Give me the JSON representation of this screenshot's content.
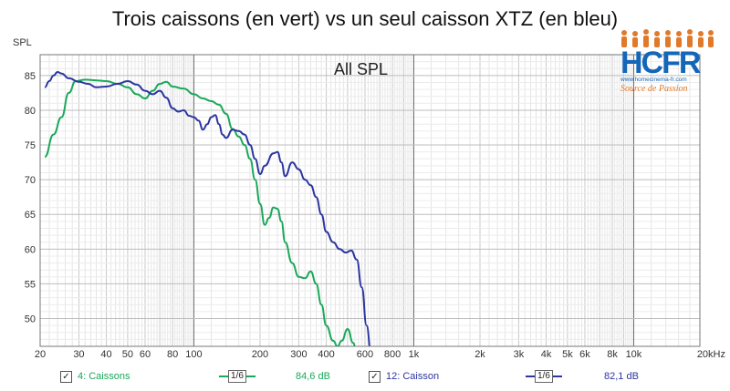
{
  "title": "Trois caissons (en vert) vs un seul caisson XTZ (en bleu)",
  "overlay_text": "All SPL",
  "logo": {
    "text": "HCFR",
    "url": "www.homecinema-fr.com",
    "tagline": "Source de Passion",
    "icon": "people-silhouettes-icon"
  },
  "colors": {
    "green": "#1aa85a",
    "blue": "#2c36a0",
    "logo_blue": "#1466b8",
    "logo_orange": "#e07a2b"
  },
  "chart_data": {
    "type": "line",
    "title": "",
    "ylabel": "SPL",
    "xscale": "log",
    "xlim": [
      20,
      20000
    ],
    "ylim": [
      46,
      88
    ],
    "grid": true,
    "yticks": [
      50,
      55,
      60,
      65,
      70,
      75,
      80,
      85
    ],
    "xticks": [
      {
        "v": 20,
        "label": "20"
      },
      {
        "v": 30,
        "label": "30"
      },
      {
        "v": 40,
        "label": "40"
      },
      {
        "v": 50,
        "label": "50"
      },
      {
        "v": 60,
        "label": "60"
      },
      {
        "v": 80,
        "label": "80"
      },
      {
        "v": 100,
        "label": "100"
      },
      {
        "v": 200,
        "label": "200"
      },
      {
        "v": 300,
        "label": "300"
      },
      {
        "v": 400,
        "label": "400"
      },
      {
        "v": 600,
        "label": "600"
      },
      {
        "v": 800,
        "label": "800"
      },
      {
        "v": 1000,
        "label": "1k"
      },
      {
        "v": 2000,
        "label": "2k"
      },
      {
        "v": 3000,
        "label": "3k"
      },
      {
        "v": 4000,
        "label": "4k"
      },
      {
        "v": 5000,
        "label": "5k"
      },
      {
        "v": 6000,
        "label": "6k"
      },
      {
        "v": 8000,
        "label": "8k"
      },
      {
        "v": 10000,
        "label": "10k"
      },
      {
        "v": 20000,
        "label": "20kHz"
      }
    ],
    "series": [
      {
        "name": "4: Caissons",
        "color": "#1aa85a",
        "smoothing": "1/6",
        "level": "84,6 dB",
        "points": [
          [
            21,
            73.3
          ],
          [
            23,
            76.5
          ],
          [
            25,
            79
          ],
          [
            27,
            82.5
          ],
          [
            29,
            84.2
          ],
          [
            32,
            84.4
          ],
          [
            36,
            84.3
          ],
          [
            40,
            84.2
          ],
          [
            45,
            83.8
          ],
          [
            50,
            83.3
          ],
          [
            55,
            82.3
          ],
          [
            60,
            81.7
          ],
          [
            65,
            82.8
          ],
          [
            70,
            83.8
          ],
          [
            75,
            84.1
          ],
          [
            80,
            83.4
          ],
          [
            90,
            83.1
          ],
          [
            100,
            82.3
          ],
          [
            110,
            81.7
          ],
          [
            120,
            81.3
          ],
          [
            130,
            80.8
          ],
          [
            140,
            79.5
          ],
          [
            150,
            77.3
          ],
          [
            160,
            76.2
          ],
          [
            170,
            75
          ],
          [
            180,
            73
          ],
          [
            190,
            70
          ],
          [
            200,
            66.5
          ],
          [
            210,
            63.5
          ],
          [
            220,
            64.5
          ],
          [
            230,
            66
          ],
          [
            240,
            65.8
          ],
          [
            250,
            64
          ],
          [
            260,
            61
          ],
          [
            280,
            58
          ],
          [
            300,
            56
          ],
          [
            320,
            55.8
          ],
          [
            340,
            56.8
          ],
          [
            360,
            55
          ],
          [
            380,
            52
          ],
          [
            400,
            49
          ],
          [
            430,
            46.8
          ],
          [
            450,
            46
          ],
          [
            470,
            46.8
          ],
          [
            500,
            48.5
          ],
          [
            530,
            46.5
          ],
          [
            550,
            45
          ]
        ]
      },
      {
        "name": "12: Caisson",
        "color": "#2c36a0",
        "smoothing": "1/6",
        "level": "82,1 dB",
        "points": [
          [
            21,
            83.3
          ],
          [
            22,
            84.2
          ],
          [
            23,
            85
          ],
          [
            24,
            85.5
          ],
          [
            25,
            85.3
          ],
          [
            27,
            84.6
          ],
          [
            30,
            84.1
          ],
          [
            33,
            83.8
          ],
          [
            36,
            83.3
          ],
          [
            40,
            83.4
          ],
          [
            45,
            83.8
          ],
          [
            50,
            84.2
          ],
          [
            55,
            83.7
          ],
          [
            60,
            82.8
          ],
          [
            65,
            82.3
          ],
          [
            70,
            82.8
          ],
          [
            75,
            81.8
          ],
          [
            80,
            80.3
          ],
          [
            85,
            79.8
          ],
          [
            90,
            80
          ],
          [
            95,
            79.2
          ],
          [
            100,
            79
          ],
          [
            105,
            78.5
          ],
          [
            110,
            77.2
          ],
          [
            115,
            78
          ],
          [
            120,
            79
          ],
          [
            125,
            79.3
          ],
          [
            130,
            78
          ],
          [
            135,
            76.5
          ],
          [
            140,
            76
          ],
          [
            150,
            77.2
          ],
          [
            160,
            77
          ],
          [
            170,
            76.5
          ],
          [
            180,
            75
          ],
          [
            190,
            73
          ],
          [
            200,
            70.8
          ],
          [
            210,
            72
          ],
          [
            230,
            73.8
          ],
          [
            240,
            74
          ],
          [
            250,
            72.5
          ],
          [
            260,
            70.5
          ],
          [
            280,
            72.5
          ],
          [
            300,
            71.5
          ],
          [
            320,
            70
          ],
          [
            340,
            69.2
          ],
          [
            360,
            67.5
          ],
          [
            380,
            65
          ],
          [
            400,
            62.5
          ],
          [
            430,
            61
          ],
          [
            460,
            60
          ],
          [
            490,
            59.5
          ],
          [
            520,
            59.8
          ],
          [
            550,
            58.5
          ],
          [
            580,
            54.5
          ],
          [
            610,
            49
          ],
          [
            640,
            45
          ]
        ]
      }
    ]
  },
  "legend": [
    {
      "checked": "✓",
      "label": "4: Caissons",
      "smoothing": "1/6",
      "level": "84,6 dB"
    },
    {
      "checked": "✓",
      "label": "12: Caisson",
      "smoothing": "1/6",
      "level": "82,1 dB"
    }
  ]
}
